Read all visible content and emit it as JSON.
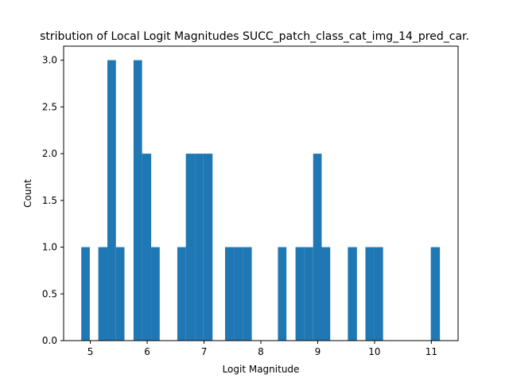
{
  "chart_data": {
    "type": "bar",
    "title": "stribution of Local Logit Magnitudes SUCC_patch_class_cat_img_14_pred_car.",
    "xlabel": "Logit Magnitude",
    "ylabel": "Count",
    "xlim": [
      4.53,
      11.47
    ],
    "ylim": [
      0,
      3.15
    ],
    "xticks": [
      "5",
      "6",
      "7",
      "8",
      "9",
      "10",
      "11"
    ],
    "yticks": [
      "0.0",
      "0.5",
      "1.0",
      "1.5",
      "2.0",
      "2.5",
      "3.0"
    ],
    "grid": false,
    "bar_color": "#1f77b4",
    "bins": [
      {
        "start": 4.84,
        "end": 4.99,
        "count": 1
      },
      {
        "start": 5.14,
        "end": 5.3,
        "count": 1
      },
      {
        "start": 5.3,
        "end": 5.45,
        "count": 3
      },
      {
        "start": 5.45,
        "end": 5.6,
        "count": 1
      },
      {
        "start": 5.76,
        "end": 5.91,
        "count": 3
      },
      {
        "start": 5.91,
        "end": 6.07,
        "count": 2
      },
      {
        "start": 6.07,
        "end": 6.22,
        "count": 1
      },
      {
        "start": 6.53,
        "end": 6.68,
        "count": 1
      },
      {
        "start": 6.68,
        "end": 6.84,
        "count": 2
      },
      {
        "start": 6.84,
        "end": 6.99,
        "count": 2
      },
      {
        "start": 6.99,
        "end": 7.15,
        "count": 2
      },
      {
        "start": 7.37,
        "end": 7.53,
        "count": 1
      },
      {
        "start": 7.53,
        "end": 7.68,
        "count": 1
      },
      {
        "start": 7.68,
        "end": 7.84,
        "count": 1
      },
      {
        "start": 8.3,
        "end": 8.45,
        "count": 1
      },
      {
        "start": 8.61,
        "end": 8.76,
        "count": 1
      },
      {
        "start": 8.76,
        "end": 8.92,
        "count": 1
      },
      {
        "start": 8.92,
        "end": 9.07,
        "count": 2
      },
      {
        "start": 9.07,
        "end": 9.22,
        "count": 1
      },
      {
        "start": 9.53,
        "end": 9.69,
        "count": 1
      },
      {
        "start": 9.84,
        "end": 10.0,
        "count": 1
      },
      {
        "start": 10.0,
        "end": 10.15,
        "count": 1
      },
      {
        "start": 10.99,
        "end": 11.15,
        "count": 1
      }
    ]
  }
}
